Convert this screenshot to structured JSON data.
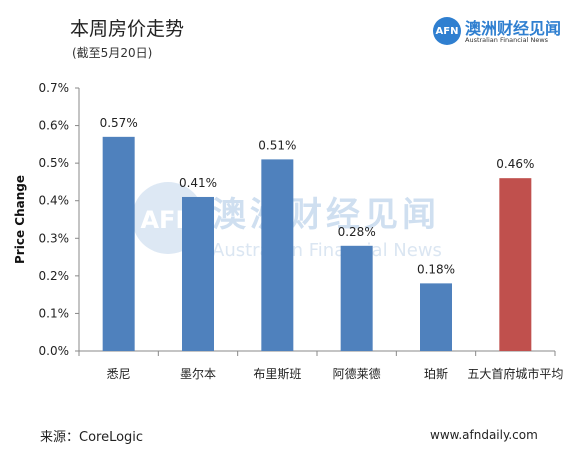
{
  "header": {
    "title": "本周房价走势",
    "subtitle": "(截至5月20日)"
  },
  "logo": {
    "badge": "AFN",
    "name": "澳洲财经见闻",
    "tagline": "Australian Financial News"
  },
  "watermark": {
    "badge": "AFN",
    "name": "澳洲财经见闻",
    "tagline": "Australian Financial News"
  },
  "footer": {
    "source": "来源：CoreLogic",
    "website": "www.afndaily.com"
  },
  "colors": {
    "bar_default": "#4f81bd",
    "bar_highlight": "#c0504d",
    "watermark": "#cfdff0",
    "logo": "#2f7fd0"
  },
  "chart_data": {
    "type": "bar",
    "ylabel": "Price Change",
    "categories": [
      "悉尼",
      "墨尔本",
      "布里斯班",
      "阿德莱德",
      "珀斯",
      "五大首府城市平均"
    ],
    "values": [
      0.57,
      0.41,
      0.51,
      0.28,
      0.18,
      0.46
    ],
    "data_labels": [
      "0.57%",
      "0.41%",
      "0.51%",
      "0.28%",
      "0.18%",
      "0.46%"
    ],
    "highlight_index": 5,
    "ylim": [
      0,
      0.7
    ],
    "yticks": [
      0,
      0.1,
      0.2,
      0.3,
      0.4,
      0.5,
      0.6,
      0.7
    ],
    "ytick_labels": [
      "0.0%",
      "0.1%",
      "0.2%",
      "0.3%",
      "0.4%",
      "0.5%",
      "0.6%",
      "0.7%"
    ],
    "grid": false,
    "legend": "none"
  }
}
